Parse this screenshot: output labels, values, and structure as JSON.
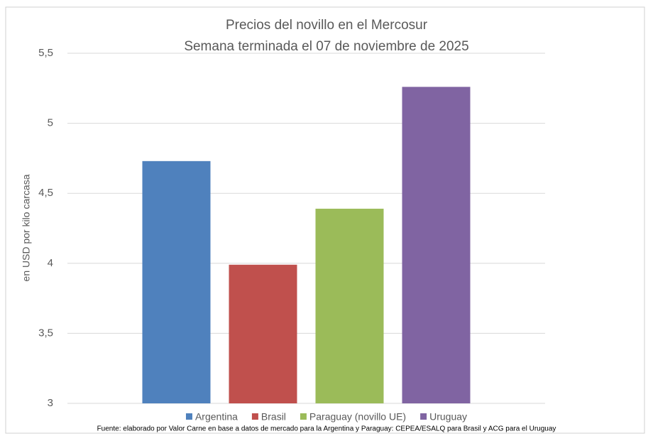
{
  "chart_data": {
    "type": "bar",
    "title": "Precios del novillo en el Mercosur",
    "subtitle": "Semana terminada el 07 de noviembre de 2025",
    "y_label": "en USD por kilo carcasa",
    "source": "Fuente: elaborado por Valor Carne en base a datos de mercado para la Argentina y Paraguay: CEPEA/ESALQ para Brasil y ACG para el Uruguay",
    "categories": [
      null
    ],
    "series": [
      {
        "name": "Argentina",
        "color": "#4f81bd",
        "values": [
          4.73
        ]
      },
      {
        "name": "Brasil",
        "color": "#c0504d",
        "values": [
          3.99
        ]
      },
      {
        "name": "Paraguay (novillo UE)",
        "color": "#9bbb59",
        "values": [
          4.39
        ]
      },
      {
        "name": "Uruguay",
        "color": "#8064a2",
        "values": [
          5.26
        ]
      }
    ],
    "ylim": [
      3,
      5.5
    ],
    "yticks": [
      3,
      {
        "value": 3.5,
        "label": "3,5"
      },
      4,
      {
        "value": 4.5,
        "label": "4,5"
      },
      5,
      {
        "value": 5.5,
        "label": "5,5"
      }
    ],
    "grid": true,
    "legend": "bottom"
  }
}
